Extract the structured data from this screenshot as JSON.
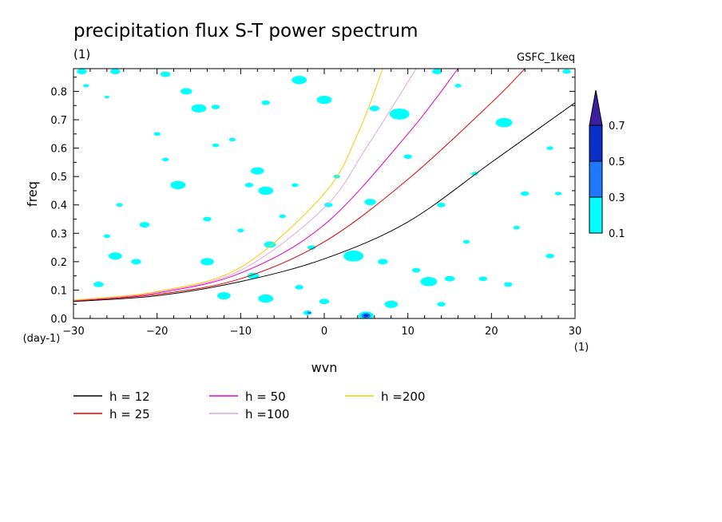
{
  "title": "precipitation flux S-T power spectrum",
  "subtitle_left": "(1)",
  "subtitle_right": "GSFC_1keq",
  "chart_data": {
    "type": "contour",
    "xlabel": "wvn",
    "ylabel": "freq",
    "x_unit": "(1)",
    "y_unit": "(day-1)",
    "xlim": [
      -30,
      30
    ],
    "ylim": [
      0,
      0.88
    ],
    "x_ticks": [
      -30,
      -20,
      -10,
      0,
      10,
      20,
      30
    ],
    "y_ticks": [
      0.0,
      0.1,
      0.2,
      0.3,
      0.4,
      0.5,
      0.6,
      0.7,
      0.8
    ],
    "colorbar": {
      "levels": [
        0.1,
        0.3,
        0.5,
        0.7
      ],
      "colors": [
        "#00ffff",
        "#1e78ff",
        "#0a2fc8",
        "#3c1ea0"
      ]
    },
    "series": [
      {
        "name": "h = 12",
        "color": "#000000",
        "h": 12,
        "points": [
          [
            -30,
            0.06
          ],
          [
            -20,
            0.08
          ],
          [
            -10,
            0.13
          ],
          [
            0,
            0.21
          ],
          [
            10,
            0.34
          ],
          [
            20,
            0.55
          ],
          [
            30,
            0.76
          ]
        ]
      },
      {
        "name": "h = 25",
        "color": "#e60000",
        "h": 25,
        "points": [
          [
            -30,
            0.062
          ],
          [
            -20,
            0.085
          ],
          [
            -10,
            0.14
          ],
          [
            0,
            0.27
          ],
          [
            10,
            0.49
          ],
          [
            20,
            0.76
          ],
          [
            24,
            0.88
          ]
        ]
      },
      {
        "name": "h = 50",
        "color": "#e600c8",
        "h": 50,
        "points": [
          [
            -30,
            0.063
          ],
          [
            -20,
            0.09
          ],
          [
            -10,
            0.16
          ],
          [
            0,
            0.33
          ],
          [
            10,
            0.65
          ],
          [
            16,
            0.88
          ]
        ]
      },
      {
        "name": "h =100",
        "color": "#e6a0e6",
        "h": 100,
        "points": [
          [
            -30,
            0.064
          ],
          [
            -20,
            0.092
          ],
          [
            -10,
            0.17
          ],
          [
            0,
            0.39
          ],
          [
            5,
            0.6
          ],
          [
            11,
            0.88
          ]
        ]
      },
      {
        "name": "h =200",
        "color": "#ffc800",
        "h": 200,
        "points": [
          [
            -30,
            0.065
          ],
          [
            -20,
            0.095
          ],
          [
            -10,
            0.18
          ],
          [
            0,
            0.44
          ],
          [
            4,
            0.65
          ],
          [
            7,
            0.88
          ]
        ]
      }
    ],
    "blobs": [
      {
        "x": -28.5,
        "y": 0.82,
        "r": 0.35,
        "level": 0
      },
      {
        "x": -26,
        "y": 0.78,
        "r": 0.3,
        "level": 0
      },
      {
        "x": -16.5,
        "y": 0.8,
        "r": 0.7,
        "level": 0
      },
      {
        "x": -15,
        "y": 0.74,
        "r": 0.9,
        "level": 0
      },
      {
        "x": -13,
        "y": 0.745,
        "r": 0.5,
        "level": 0
      },
      {
        "x": -7,
        "y": 0.76,
        "r": 0.5,
        "level": 0
      },
      {
        "x": -3,
        "y": 0.84,
        "r": 0.9,
        "level": 0
      },
      {
        "x": 0,
        "y": 0.77,
        "r": 0.9,
        "level": 0
      },
      {
        "x": 6,
        "y": 0.74,
        "r": 0.6,
        "level": 0
      },
      {
        "x": 9,
        "y": 0.72,
        "r": 1.2,
        "level": 0
      },
      {
        "x": 16,
        "y": 0.82,
        "r": 0.4,
        "level": 0
      },
      {
        "x": 21.5,
        "y": 0.69,
        "r": 1.0,
        "level": 0
      },
      {
        "x": 27,
        "y": 0.6,
        "r": 0.4,
        "level": 0
      },
      {
        "x": 24,
        "y": 0.44,
        "r": 0.5,
        "level": 0
      },
      {
        "x": 28,
        "y": 0.44,
        "r": 0.4,
        "level": 0
      },
      {
        "x": 14,
        "y": 0.4,
        "r": 0.5,
        "level": 0
      },
      {
        "x": 5.5,
        "y": 0.41,
        "r": 0.7,
        "level": 0
      },
      {
        "x": 0.5,
        "y": 0.4,
        "r": 0.5,
        "level": 0
      },
      {
        "x": -8,
        "y": 0.52,
        "r": 0.8,
        "level": 0
      },
      {
        "x": -9,
        "y": 0.47,
        "r": 0.5,
        "level": 0
      },
      {
        "x": -7,
        "y": 0.45,
        "r": 0.9,
        "level": 0
      },
      {
        "x": -17.5,
        "y": 0.47,
        "r": 0.9,
        "level": 0
      },
      {
        "x": -24.5,
        "y": 0.4,
        "r": 0.4,
        "level": 0
      },
      {
        "x": -21.5,
        "y": 0.33,
        "r": 0.6,
        "level": 0
      },
      {
        "x": -25,
        "y": 0.22,
        "r": 0.8,
        "level": 0
      },
      {
        "x": -22.5,
        "y": 0.2,
        "r": 0.6,
        "level": 0
      },
      {
        "x": -14,
        "y": 0.2,
        "r": 0.8,
        "level": 0
      },
      {
        "x": -10,
        "y": 0.31,
        "r": 0.4,
        "level": 0
      },
      {
        "x": -8.5,
        "y": 0.15,
        "r": 0.7,
        "level": 0
      },
      {
        "x": -6.5,
        "y": 0.26,
        "r": 0.7,
        "level": 0
      },
      {
        "x": -1.5,
        "y": 0.25,
        "r": 0.5,
        "level": 0
      },
      {
        "x": 3.5,
        "y": 0.22,
        "r": 1.2,
        "level": 0
      },
      {
        "x": 7,
        "y": 0.2,
        "r": 0.6,
        "level": 0
      },
      {
        "x": 12.5,
        "y": 0.13,
        "r": 1.0,
        "level": 0
      },
      {
        "x": 15,
        "y": 0.14,
        "r": 0.6,
        "level": 0
      },
      {
        "x": 19,
        "y": 0.14,
        "r": 0.5,
        "level": 0
      },
      {
        "x": 22,
        "y": 0.12,
        "r": 0.5,
        "level": 0
      },
      {
        "x": 27,
        "y": 0.22,
        "r": 0.5,
        "level": 0
      },
      {
        "x": -27,
        "y": 0.12,
        "r": 0.6,
        "level": 0
      },
      {
        "x": -12,
        "y": 0.08,
        "r": 0.8,
        "level": 0
      },
      {
        "x": -7,
        "y": 0.07,
        "r": 0.9,
        "level": 0
      },
      {
        "x": -3,
        "y": 0.11,
        "r": 0.5,
        "level": 0
      },
      {
        "x": 0,
        "y": 0.06,
        "r": 0.6,
        "level": 0
      },
      {
        "x": 8,
        "y": 0.05,
        "r": 0.8,
        "level": 0
      },
      {
        "x": 14,
        "y": 0.05,
        "r": 0.5,
        "level": 0
      },
      {
        "x": -2,
        "y": 0.02,
        "r": 0.5,
        "level": 0
      },
      {
        "x": 5,
        "y": 0.01,
        "r": 0.9,
        "level": 0
      },
      {
        "x": 5,
        "y": 0.01,
        "r": 0.55,
        "level": 1
      },
      {
        "x": 5,
        "y": 0.01,
        "r": 0.3,
        "level": 2
      },
      {
        "x": -1.8,
        "y": 0.02,
        "r": 0.25,
        "level": 1
      },
      {
        "x": -29,
        "y": 0.87,
        "r": 0.6,
        "level": 0
      },
      {
        "x": -25,
        "y": 0.87,
        "r": 0.6,
        "level": 0
      },
      {
        "x": -19,
        "y": 0.86,
        "r": 0.6,
        "level": 0
      },
      {
        "x": 13.5,
        "y": 0.87,
        "r": 0.6,
        "level": 0
      },
      {
        "x": 29,
        "y": 0.87,
        "r": 0.5,
        "level": 0
      },
      {
        "x": -11,
        "y": 0.63,
        "r": 0.4,
        "level": 0
      },
      {
        "x": -19,
        "y": 0.56,
        "r": 0.4,
        "level": 0
      },
      {
        "x": 18,
        "y": 0.51,
        "r": 0.4,
        "level": 0
      },
      {
        "x": 10,
        "y": 0.57,
        "r": 0.5,
        "level": 0
      },
      {
        "x": -13,
        "y": 0.61,
        "r": 0.4,
        "level": 0
      },
      {
        "x": -26,
        "y": 0.29,
        "r": 0.4,
        "level": 0
      },
      {
        "x": -14,
        "y": 0.35,
        "r": 0.5,
        "level": 0
      },
      {
        "x": -5,
        "y": 0.36,
        "r": 0.4,
        "level": 0
      },
      {
        "x": 23,
        "y": 0.32,
        "r": 0.4,
        "level": 0
      },
      {
        "x": 17,
        "y": 0.27,
        "r": 0.4,
        "level": 0
      },
      {
        "x": 11,
        "y": 0.17,
        "r": 0.5,
        "level": 0
      },
      {
        "x": -3.5,
        "y": 0.47,
        "r": 0.4,
        "level": 0
      },
      {
        "x": 1.5,
        "y": 0.5,
        "r": 0.4,
        "level": 0
      },
      {
        "x": -20,
        "y": 0.65,
        "r": 0.4,
        "level": 0
      }
    ]
  },
  "legend_items": [
    "h = 12",
    "h = 25",
    "h = 50",
    "h =100",
    "h =200"
  ]
}
